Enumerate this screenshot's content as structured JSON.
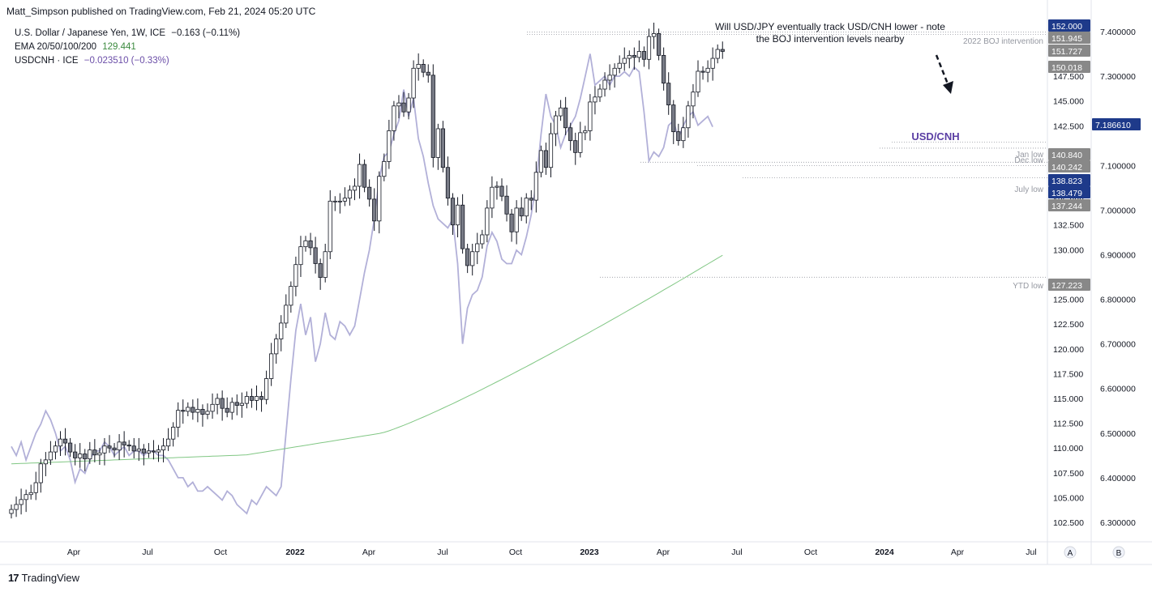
{
  "attribution": "Matt_Simpson published on TradingView.com, Feb 21, 2024 05:20 UTC",
  "legend": {
    "main": {
      "name": "U.S. Dollar / Japanese Yen, 1W, ICE",
      "change": "−0.163 (−0.11%)"
    },
    "ema": {
      "name": "EMA 20/50/100/200",
      "value": "129.441"
    },
    "overlay": {
      "name": "USDCNH · ICE",
      "change": "−0.023510 (−0.33%)"
    }
  },
  "annotations": {
    "callout": [
      "Will USD/JPY eventually track USD/CNH lower - note",
      "the BOJ intervention levels nearby"
    ],
    "boj": "2022 BOJ intervention",
    "jan_low": "Jan low",
    "dec_low": "Dec low",
    "july_low": "July low",
    "ytd_low": "YTD low",
    "usdcnh": "USD/CNH"
  },
  "footer": {
    "brand": "TradingView",
    "mark": "17",
    "btn_a": "A",
    "btn_b": "B"
  },
  "colors": {
    "up": "#ffffff",
    "down": "#787b86",
    "wick": "#131722",
    "cnh": "#b2b0d8",
    "ema": "#81c784",
    "dark_tag": "#1e3a8a",
    "grey_tag": "#888888",
    "purple": "#5b3fa4"
  },
  "chart_data": {
    "type": "candlestick",
    "title": "U.S. Dollar / Japanese Yen, 1W, ICE",
    "timeframe": "1W",
    "x_ticks": [
      "Apr",
      "Jul",
      "Oct",
      "2022",
      "Apr",
      "Jul",
      "Oct",
      "2023",
      "Apr",
      "Jul",
      "Oct",
      "2024",
      "Apr",
      "Jul"
    ],
    "y_axis_left": {
      "ticks": [
        "152.000",
        "151.945",
        "151.727",
        "150.018",
        "147.500",
        "145.000",
        "142.500",
        "140.840",
        "140.242",
        "138.823",
        "138.479",
        "137.244",
        "135.000",
        "132.500",
        "130.000",
        "127.223",
        "125.000",
        "122.500",
        "120.000",
        "117.500",
        "115.000",
        "112.500",
        "110.000",
        "107.500",
        "105.000",
        "102.500"
      ],
      "range": [
        101.5,
        154.8
      ]
    },
    "y_axis_right": {
      "ticks": [
        "7.400000",
        "7.300000",
        "7.200000",
        "7.186610",
        "7.100000",
        "7.000000",
        "6.900000",
        "6.800000",
        "6.700000",
        "6.600000",
        "6.500000",
        "6.400000",
        "6.300000"
      ],
      "range": [
        6.23,
        7.45
      ]
    },
    "levels": [
      {
        "name": "2022 BOJ intervention",
        "value": 151.945
      },
      {
        "name": "Jan low",
        "value": 140.84
      },
      {
        "name": "Dec low",
        "value": 140.242
      },
      {
        "name": "July low",
        "value": 137.244
      },
      {
        "name": "YTD low",
        "value": 127.223
      }
    ],
    "price_tags": [
      {
        "value": "152.000",
        "style": "dark"
      },
      {
        "value": "151.945",
        "style": "grey"
      },
      {
        "value": "151.727",
        "style": "grey"
      },
      {
        "value": "150.018",
        "style": "grey"
      },
      {
        "value": "140.840",
        "style": "grey"
      },
      {
        "value": "140.242",
        "style": "grey"
      },
      {
        "value": "138.823",
        "style": "dark"
      },
      {
        "value": "138.479",
        "style": "dark"
      },
      {
        "value": "137.244",
        "style": "grey"
      },
      {
        "value": "127.223",
        "style": "grey"
      },
      {
        "value": "7.186610",
        "style": "dark"
      }
    ],
    "candle_closes": [
      103.8,
      104.3,
      104.8,
      105.3,
      105.5,
      106.5,
      108.4,
      108.8,
      109.6,
      110.2,
      110.9,
      110.5,
      109.6,
      109.0,
      109.4,
      108.9,
      109.8,
      109.3,
      109.5,
      110.2,
      110.0,
      109.8,
      110.6,
      110.3,
      110.2,
      109.7,
      109.9,
      109.5,
      109.7,
      109.6,
      109.8,
      110.2,
      110.9,
      112.1,
      113.8,
      113.7,
      114.1,
      113.6,
      113.9,
      113.4,
      113.7,
      114.4,
      115.0,
      114.0,
      113.6,
      114.6,
      114.3,
      114.5,
      115.2,
      114.8,
      115.2,
      114.9,
      117.0,
      119.5,
      121.0,
      122.6,
      124.4,
      126.3,
      128.5,
      130.3,
      130.9,
      130.2,
      128.6,
      127.2,
      129.8,
      134.9,
      134.9,
      134.9,
      135.2,
      136.0,
      136.4,
      138.6,
      136.3,
      135.1,
      132.9,
      137.4,
      138.9,
      142.0,
      144.5,
      144.8,
      143.9,
      145.3,
      148.3,
      148.7,
      147.9,
      147.6,
      139.3,
      142.2,
      138.3,
      135.2,
      132.5,
      134.5,
      130.1,
      128.4,
      129.8,
      130.6,
      131.5,
      134.2,
      136.3,
      136.4,
      135.4,
      133.6,
      131.8,
      134.2,
      133.4,
      135.2,
      135.0,
      137.8,
      140.0,
      138.3,
      141.7,
      143.5,
      144.3,
      142.3,
      141.0,
      139.8,
      141.8,
      142.0,
      144.9,
      145.4,
      146.2,
      147.1,
      147.6,
      148.3,
      148.8,
      149.3,
      149.6,
      149.4,
      150.0,
      149.2,
      151.5,
      151.8,
      149.6,
      146.8,
      144.6,
      141.9,
      141.0,
      142.3,
      144.5,
      145.9,
      148.0,
      147.9,
      148.3,
      149.3,
      150.2,
      150.0
    ],
    "cnh_last": 7.18661,
    "ema_last": 129.441
  }
}
